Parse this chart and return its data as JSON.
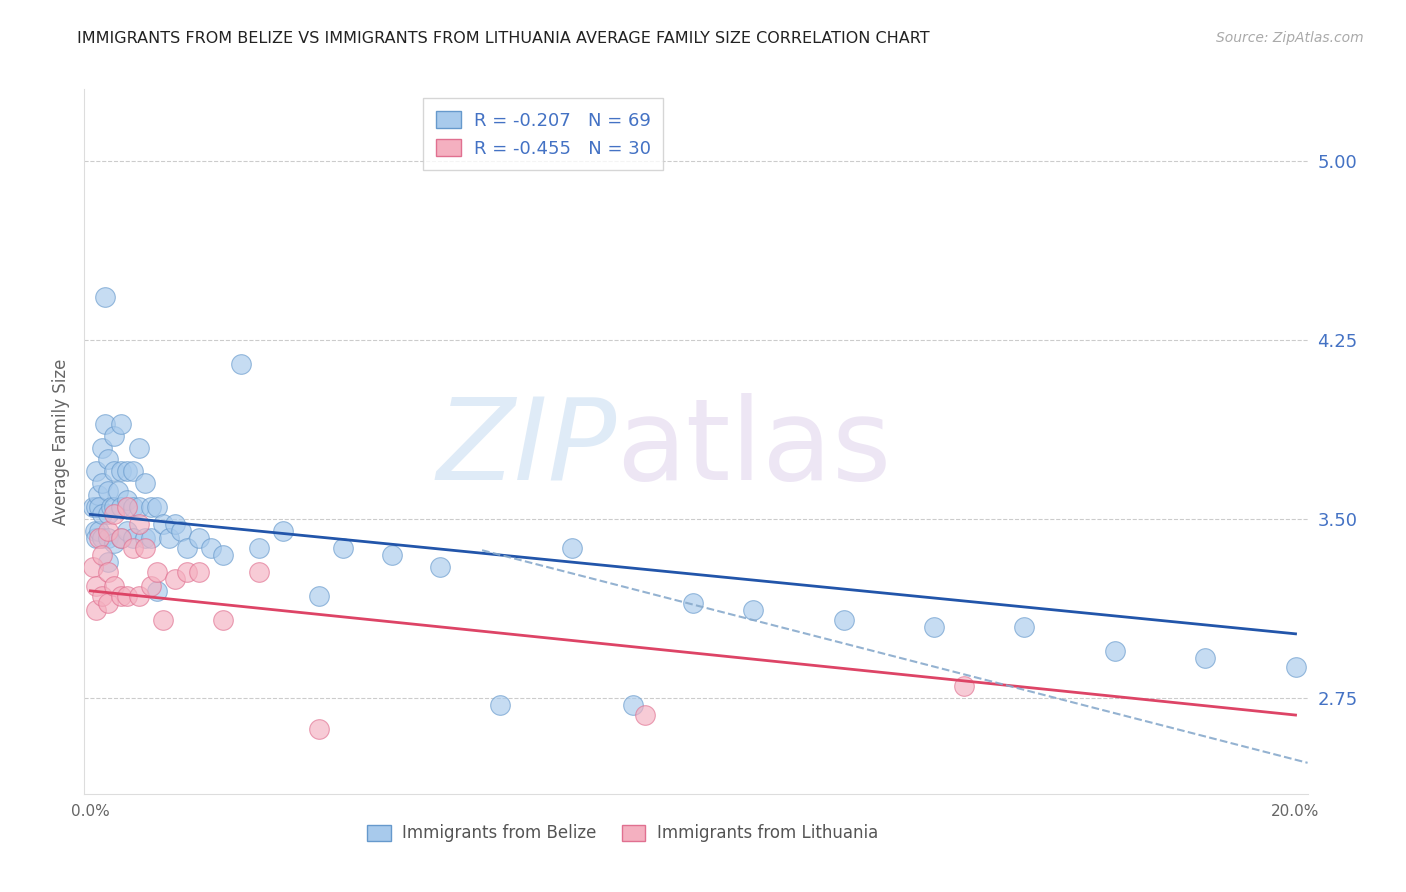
{
  "title": "IMMIGRANTS FROM BELIZE VS IMMIGRANTS FROM LITHUANIA AVERAGE FAMILY SIZE CORRELATION CHART",
  "source": "Source: ZipAtlas.com",
  "ylabel": "Average Family Size",
  "yticks_right": [
    2.75,
    3.5,
    4.25,
    5.0
  ],
  "xlim": [
    -0.001,
    0.202
  ],
  "ylim": [
    2.35,
    5.3
  ],
  "belize_color": "#A8CAEC",
  "belize_edge_color": "#6699CC",
  "lithuania_color": "#F4B0C0",
  "lithuania_edge_color": "#E07090",
  "line_belize_color": "#2255AA",
  "line_lith_color": "#DD4466",
  "dash_color": "#88AACC",
  "grid_color": "#CCCCCC",
  "background_color": "#FFFFFF",
  "title_color": "#222222",
  "right_ytick_color": "#4472C4",
  "source_color": "#AAAAAA",
  "belize_R_val": "-0.207",
  "belize_N_val": "69",
  "lith_R_val": "-0.455",
  "lith_N_val": "30",
  "belize_scatter_x": [
    0.0005,
    0.0008,
    0.001,
    0.001,
    0.001,
    0.0012,
    0.0015,
    0.0015,
    0.002,
    0.002,
    0.002,
    0.002,
    0.0025,
    0.0025,
    0.003,
    0.003,
    0.003,
    0.003,
    0.003,
    0.0035,
    0.004,
    0.004,
    0.004,
    0.004,
    0.0045,
    0.005,
    0.005,
    0.005,
    0.005,
    0.006,
    0.006,
    0.006,
    0.007,
    0.007,
    0.007,
    0.008,
    0.008,
    0.009,
    0.009,
    0.01,
    0.01,
    0.011,
    0.011,
    0.012,
    0.013,
    0.014,
    0.015,
    0.016,
    0.018,
    0.02,
    0.022,
    0.025,
    0.028,
    0.032,
    0.038,
    0.042,
    0.05,
    0.058,
    0.068,
    0.08,
    0.09,
    0.1,
    0.11,
    0.125,
    0.14,
    0.155,
    0.17,
    0.185,
    0.2
  ],
  "belize_scatter_y": [
    3.55,
    3.45,
    3.7,
    3.55,
    3.42,
    3.6,
    3.55,
    3.45,
    3.8,
    3.65,
    3.52,
    3.42,
    4.43,
    3.9,
    3.75,
    3.62,
    3.52,
    3.42,
    3.32,
    3.55,
    3.85,
    3.7,
    3.55,
    3.4,
    3.62,
    3.9,
    3.7,
    3.55,
    3.42,
    3.7,
    3.58,
    3.45,
    3.7,
    3.55,
    3.42,
    3.8,
    3.55,
    3.65,
    3.42,
    3.55,
    3.42,
    3.55,
    3.2,
    3.48,
    3.42,
    3.48,
    3.45,
    3.38,
    3.42,
    3.38,
    3.35,
    4.15,
    3.38,
    3.45,
    3.18,
    3.38,
    3.35,
    3.3,
    2.72,
    3.38,
    2.72,
    3.15,
    3.12,
    3.08,
    3.05,
    3.05,
    2.95,
    2.92,
    2.88
  ],
  "lith_scatter_x": [
    0.0005,
    0.001,
    0.001,
    0.0015,
    0.002,
    0.002,
    0.003,
    0.003,
    0.003,
    0.004,
    0.004,
    0.005,
    0.005,
    0.006,
    0.006,
    0.007,
    0.008,
    0.008,
    0.009,
    0.01,
    0.011,
    0.012,
    0.014,
    0.016,
    0.018,
    0.022,
    0.028,
    0.038,
    0.092,
    0.145
  ],
  "lith_scatter_y": [
    3.3,
    3.22,
    3.12,
    3.42,
    3.35,
    3.18,
    3.45,
    3.28,
    3.15,
    3.52,
    3.22,
    3.42,
    3.18,
    3.55,
    3.18,
    3.38,
    3.48,
    3.18,
    3.38,
    3.22,
    3.28,
    3.08,
    3.25,
    3.28,
    3.28,
    3.08,
    3.28,
    2.62,
    2.68,
    2.8
  ],
  "belize_line": [
    0.0,
    3.52,
    0.2,
    3.02
  ],
  "lith_line": [
    0.0,
    3.2,
    0.2,
    2.68
  ],
  "dash_line": [
    0.065,
    3.37,
    0.202,
    2.48
  ]
}
